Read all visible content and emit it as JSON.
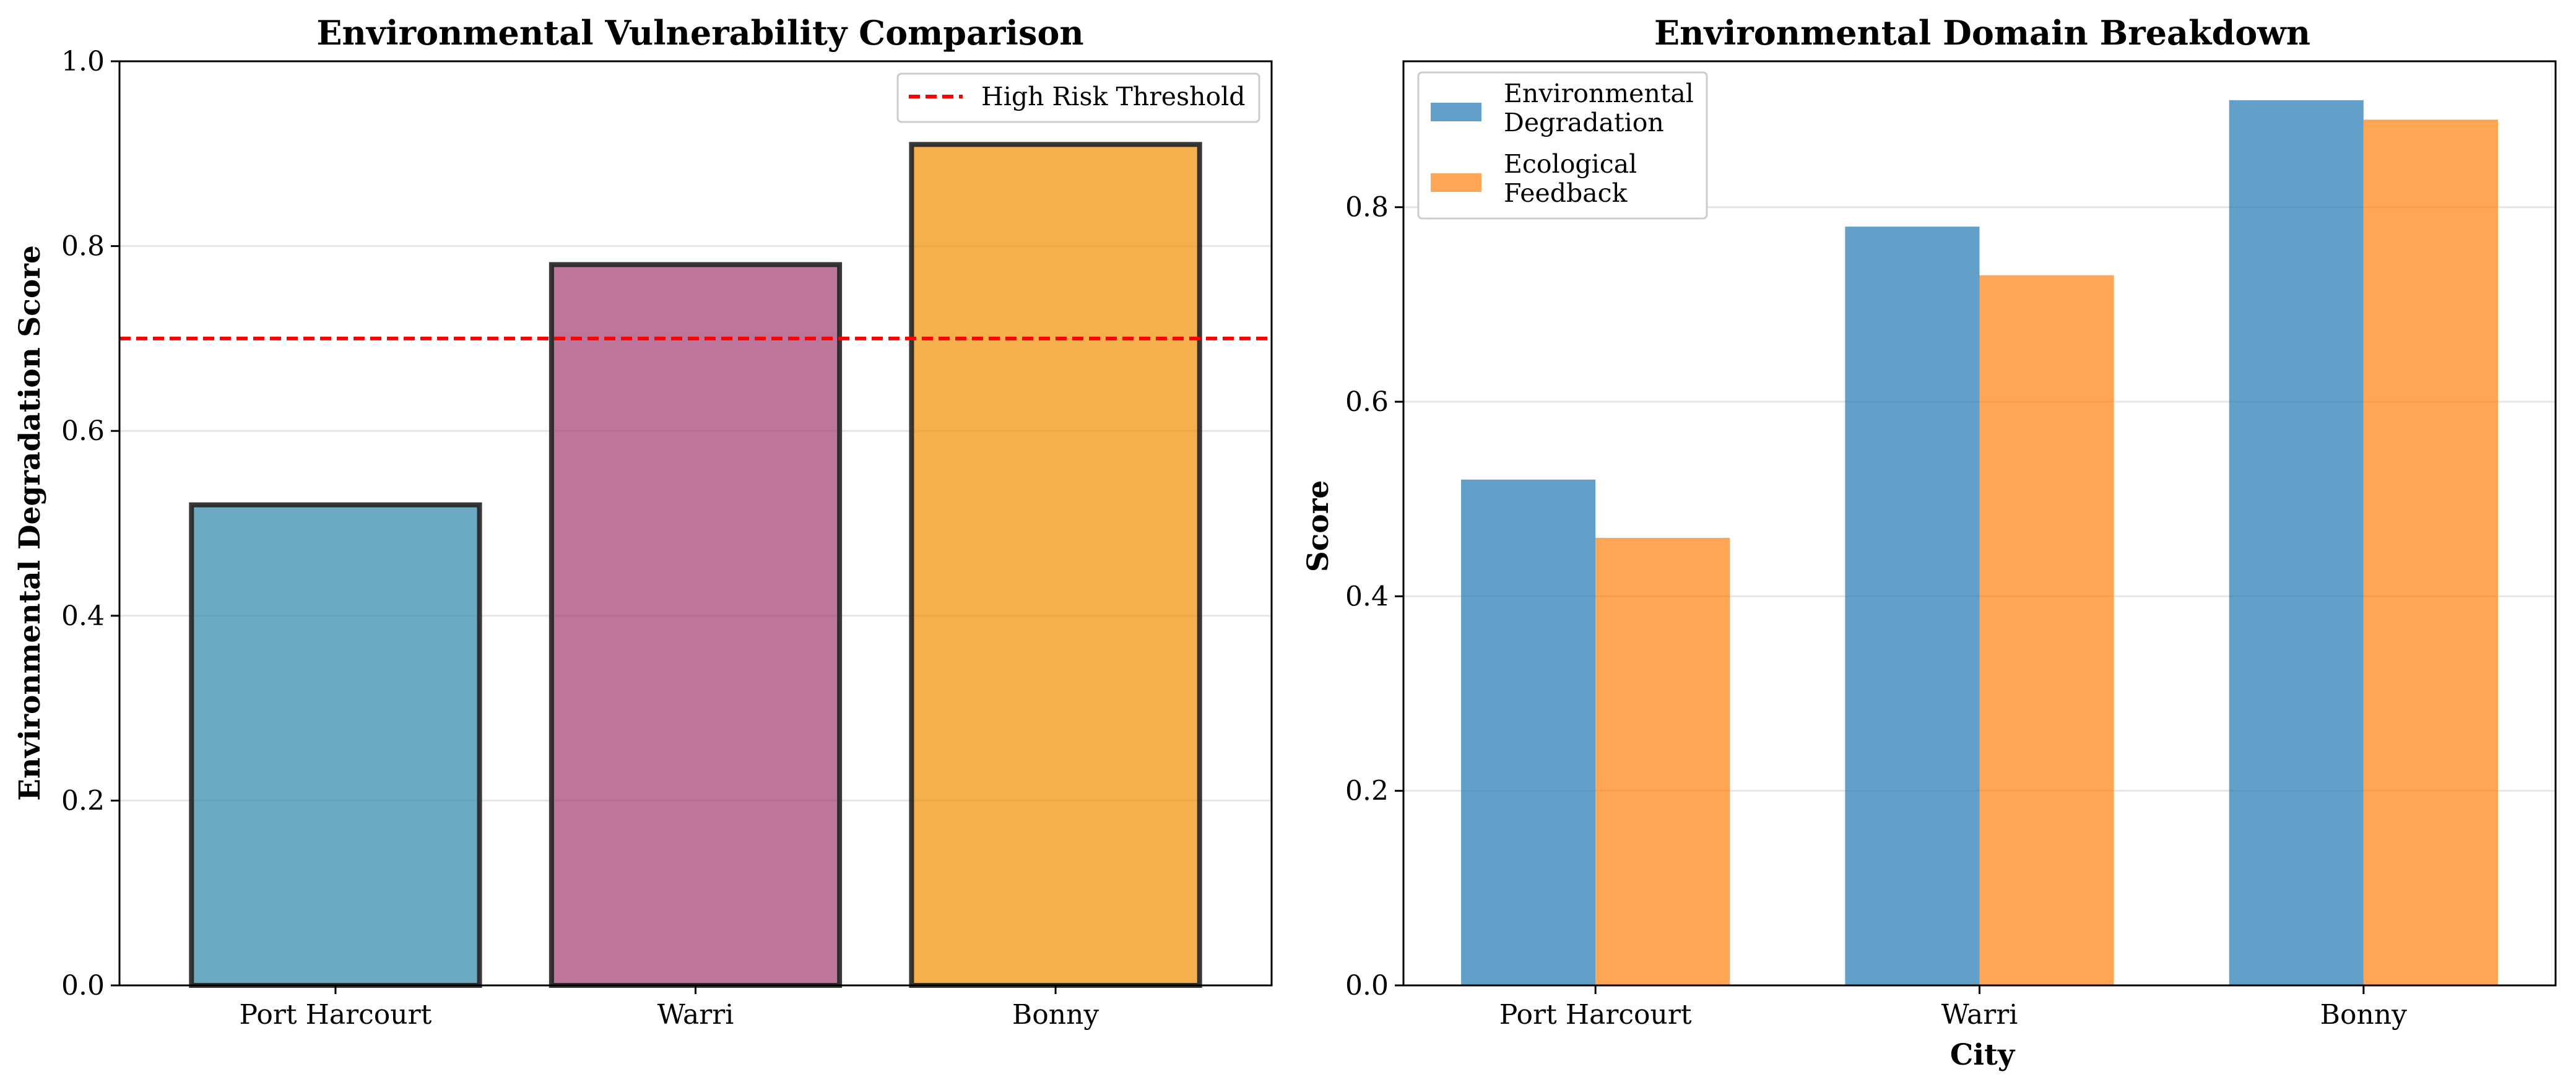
{
  "chart_data": [
    {
      "type": "bar",
      "title": "Environmental Vulnerability Comparison",
      "xlabel": "",
      "ylabel": "Environmental Degradation Score",
      "categories": [
        "Port Harcourt",
        "Warri",
        "Bonny"
      ],
      "values": [
        0.52,
        0.78,
        0.91
      ],
      "bar_colors": [
        "#2E86AB",
        "#A23B72",
        "#F18F01"
      ],
      "ylim": [
        0,
        1.0
      ],
      "yticks": [
        "0.0",
        "0.2",
        "0.4",
        "0.6",
        "0.8",
        "1.0"
      ],
      "threshold": {
        "value": 0.7,
        "label": "High Risk Threshold",
        "color": "#ff0000"
      },
      "grid": "y",
      "legend_position": "top-right"
    },
    {
      "type": "bar",
      "title": "Environmental Domain Breakdown",
      "xlabel": "City",
      "ylabel": "Score",
      "categories": [
        "Port Harcourt",
        "Warri",
        "Bonny"
      ],
      "series": [
        {
          "name": "Environmental\nDegradation",
          "values": [
            0.52,
            0.78,
            0.91
          ],
          "color": "#1f77b4"
        },
        {
          "name": "Ecological\nFeedback",
          "values": [
            0.46,
            0.73,
            0.89
          ],
          "color": "#ff7f0e"
        }
      ],
      "ylim": [
        0,
        0.95
      ],
      "yticks": [
        "0.0",
        "0.2",
        "0.4",
        "0.6",
        "0.8"
      ],
      "grid": "y",
      "legend_position": "top-left"
    }
  ]
}
